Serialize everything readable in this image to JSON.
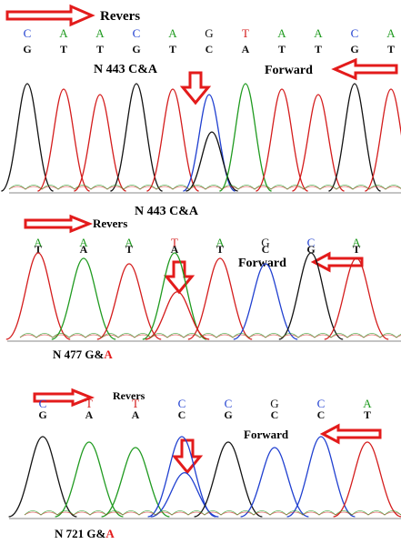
{
  "colors": {
    "A": "#1f9a1f",
    "C": "#1f3fd0",
    "G": "#111111",
    "T": "#d41b1b",
    "arrow": "#e31b1b",
    "label": "#111111"
  },
  "panels": [
    {
      "id": "n443",
      "reverse_label": "Revers",
      "forward_label": "Forward",
      "mutation_label": "N 443 C&A",
      "mutation_label_prefix": "",
      "mutation_label_suffix": "",
      "bottom_label": "N 443 C&A",
      "reverse_bases": [
        "C",
        "A",
        "A",
        "C",
        "A",
        "G",
        "T",
        "A",
        "A",
        "C",
        "A"
      ],
      "forward_bases": [
        "G",
        "T",
        "T",
        "G",
        "T",
        "C",
        "A",
        "T",
        "T",
        "G",
        "T"
      ],
      "highlight_index": 5
    },
    {
      "id": "n477",
      "reverse_label": "Revers",
      "forward_label": "Forward",
      "bottom_label_prefix": "N 477 G&",
      "bottom_label_suffix": "A",
      "reverse_bases": [
        "A",
        "A",
        "A",
        "T",
        "A",
        "G",
        "C",
        "A"
      ],
      "forward_bases": [
        "T",
        "A",
        "T",
        "A",
        "T",
        "C",
        "G",
        "T"
      ],
      "highlight_index": 3
    },
    {
      "id": "n721",
      "reverse_label": "Revers",
      "forward_label": "Forward",
      "bottom_label_prefix": "N 721 G&",
      "bottom_label_suffix": "A",
      "reverse_bases": [
        "C",
        "T",
        "T",
        "C",
        "C",
        "G",
        "C",
        "A"
      ],
      "forward_bases": [
        "G",
        "A",
        "A",
        "C",
        "G",
        "C",
        "C",
        "T"
      ],
      "highlight_index": 3
    }
  ]
}
